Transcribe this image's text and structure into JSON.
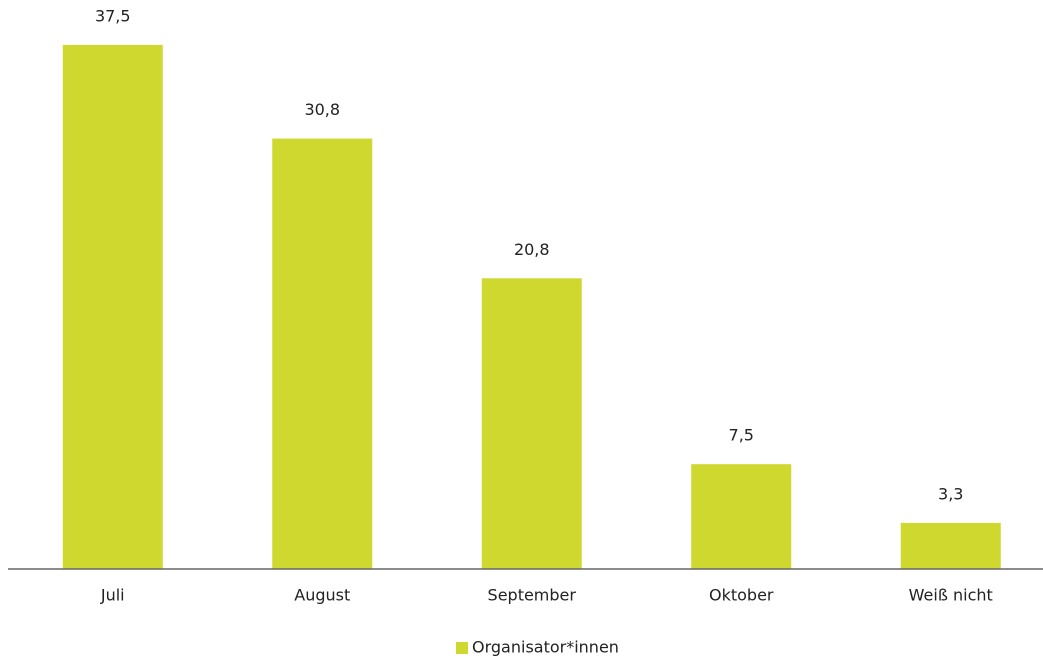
{
  "chart_data": {
    "type": "bar",
    "categories": [
      "Juli",
      "August",
      "September",
      "Oktober",
      "Weiß nicht"
    ],
    "series": [
      {
        "name": "Organisator*innen",
        "color": "#cfd82f",
        "values": [
          37.5,
          30.8,
          20.8,
          7.5,
          3.3
        ],
        "value_labels": [
          "37,5",
          "30,8",
          "20,8",
          "7,5",
          "3,3"
        ]
      }
    ],
    "ylim": [
      0,
      40
    ]
  }
}
